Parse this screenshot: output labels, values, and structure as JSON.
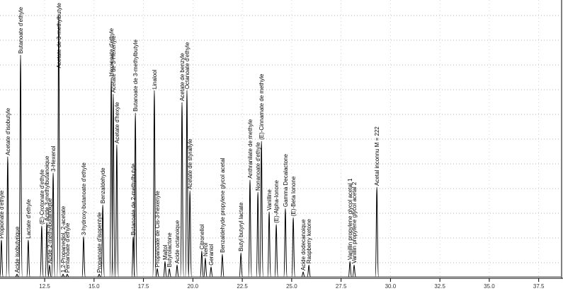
{
  "chart_data": {
    "type": "chromatogram",
    "color": "#000000",
    "xlim": [
      10.24,
      38.73
    ],
    "ylim": [
      0,
      100
    ],
    "xticks": [
      12.5,
      {
        "value": 15,
        "label": "15.0"
      },
      17.5,
      {
        "value": 20,
        "label": "20.0"
      },
      22.5,
      {
        "value": 25,
        "label": "25.0"
      },
      27.5,
      {
        "value": 30,
        "label": "30.0"
      },
      32.5,
      {
        "value": 35,
        "label": "35.0"
      },
      37.5
    ],
    "grid": true,
    "peaks": [
      {
        "time": 10.31,
        "height": 13.3,
        "label": "Propionate d'ethyle"
      },
      {
        "time": 10.63,
        "height": 43.4,
        "label": "Acetate d'isobutyle"
      },
      {
        "time": 11.1,
        "height": 1,
        "label": "Acide isobutyrique"
      },
      {
        "time": 11.28,
        "height": 80.1,
        "label": "Butanoate d'ethyle"
      },
      {
        "time": 11.67,
        "height": 13.3,
        "label": "Lactate d'ethyle"
      },
      {
        "time": 12.35,
        "height": 18.4,
        "label": "(E)-Crotonate d'ethyle"
      },
      {
        "time": 12.61,
        "height": 19.6,
        "label": "Acide 3-methylbutanoique"
      },
      {
        "time": 12.75,
        "height": 4.3,
        "label": "Acide 2-methylbutanoique"
      },
      {
        "time": 12.93,
        "height": 37.5,
        "label": "3-Hexenol"
      },
      {
        "time": 13.21,
        "height": 94.4,
        "label": "Acetate de 3-methylbutyle"
      },
      {
        "time": 13.43,
        "height": 1,
        "label": "1,2-Propanediol, 2-acetate"
      },
      {
        "time": 13.64,
        "height": 1,
        "label": "Pentanoate d'ethyle"
      },
      {
        "time": 14.47,
        "height": 14.5,
        "label": "3-hydroxy-butanoate d'ethyle"
      },
      {
        "time": 15.26,
        "height": 1,
        "label": "Propanoate d'isopentyle"
      },
      {
        "time": 15.44,
        "height": 26,
        "label": "Benzaldehyde"
      },
      {
        "time": 15.87,
        "height": 71.9,
        "label": "Hexanoate d'ethyle"
      },
      {
        "time": 15.97,
        "height": 66,
        "label": "Acetate de 3-Hexenyle"
      },
      {
        "time": 16.15,
        "height": 47.7,
        "label": "Acetate d'hexyle"
      },
      {
        "time": 16.98,
        "height": 14.5,
        "label": "Butanoate de 2-methylbutyle"
      },
      {
        "time": 17.09,
        "height": 59.2,
        "label": "Butanoate de 3-methylbutyle"
      },
      {
        "time": 18.05,
        "height": 67.3,
        "label": "Linalool"
      },
      {
        "time": 18.2,
        "height": 3,
        "label": "Propanoate de Cis-3-hexenyle"
      },
      {
        "time": 18.59,
        "height": 5.6,
        "label": "Maltol"
      },
      {
        "time": 18.81,
        "height": 3,
        "label": "Butyrolactone"
      },
      {
        "time": 19.2,
        "height": 4.3,
        "label": "Acide octanoique"
      },
      {
        "time": 19.45,
        "height": 63,
        "label": "Acetate de benzyle"
      },
      {
        "time": 19.7,
        "height": 67.3,
        "label": "Octanoate d'ethyle"
      },
      {
        "time": 19.85,
        "height": 31.1,
        "label": "Acetate de styrallyle"
      },
      {
        "time": 20.45,
        "height": 9.4,
        "label": "Citronellol"
      },
      {
        "time": 20.63,
        "height": 6.9,
        "label": "Nerol"
      },
      {
        "time": 20.92,
        "height": 3.6,
        "label": "Geraniol"
      },
      {
        "time": 21.49,
        "height": 8.2,
        "label": "Benzaldehyde propylene glycol acetal"
      },
      {
        "time": 22.43,
        "height": 8.7,
        "label": "Butyl butyryl lactate"
      },
      {
        "time": 22.89,
        "height": 35,
        "label": "Anthranilate de methyle"
      },
      {
        "time": 23.29,
        "height": 30.6,
        "label": "Nonanoate d'ethyle"
      },
      {
        "time": 23.47,
        "height": 49,
        "label": "(E)-Cinnamate de methyle"
      },
      {
        "time": 23.86,
        "height": 23.5,
        "label": "Vanilline"
      },
      {
        "time": 24.22,
        "height": 18.9,
        "label": "(E)-Alpha-Ionone"
      },
      {
        "time": 24.68,
        "height": 24.7,
        "label": "Gamma Decalactone"
      },
      {
        "time": 25.08,
        "height": 21.4,
        "label": "(E)-Beta Ionone"
      },
      {
        "time": 25.58,
        "height": 1.8,
        "label": "Acide dodecanoique"
      },
      {
        "time": 25.87,
        "height": 4.3,
        "label": "Raspberry ketone"
      },
      {
        "time": 27.95,
        "height": 5.6,
        "label": "Vanillin propylene glycol acetal 1"
      },
      {
        "time": 28.16,
        "height": 4.3,
        "label": "Vanillin propylene glycol acetal 2"
      },
      {
        "time": 29.31,
        "height": 32.4,
        "label": "Acetal inconnu M = 222"
      }
    ]
  }
}
